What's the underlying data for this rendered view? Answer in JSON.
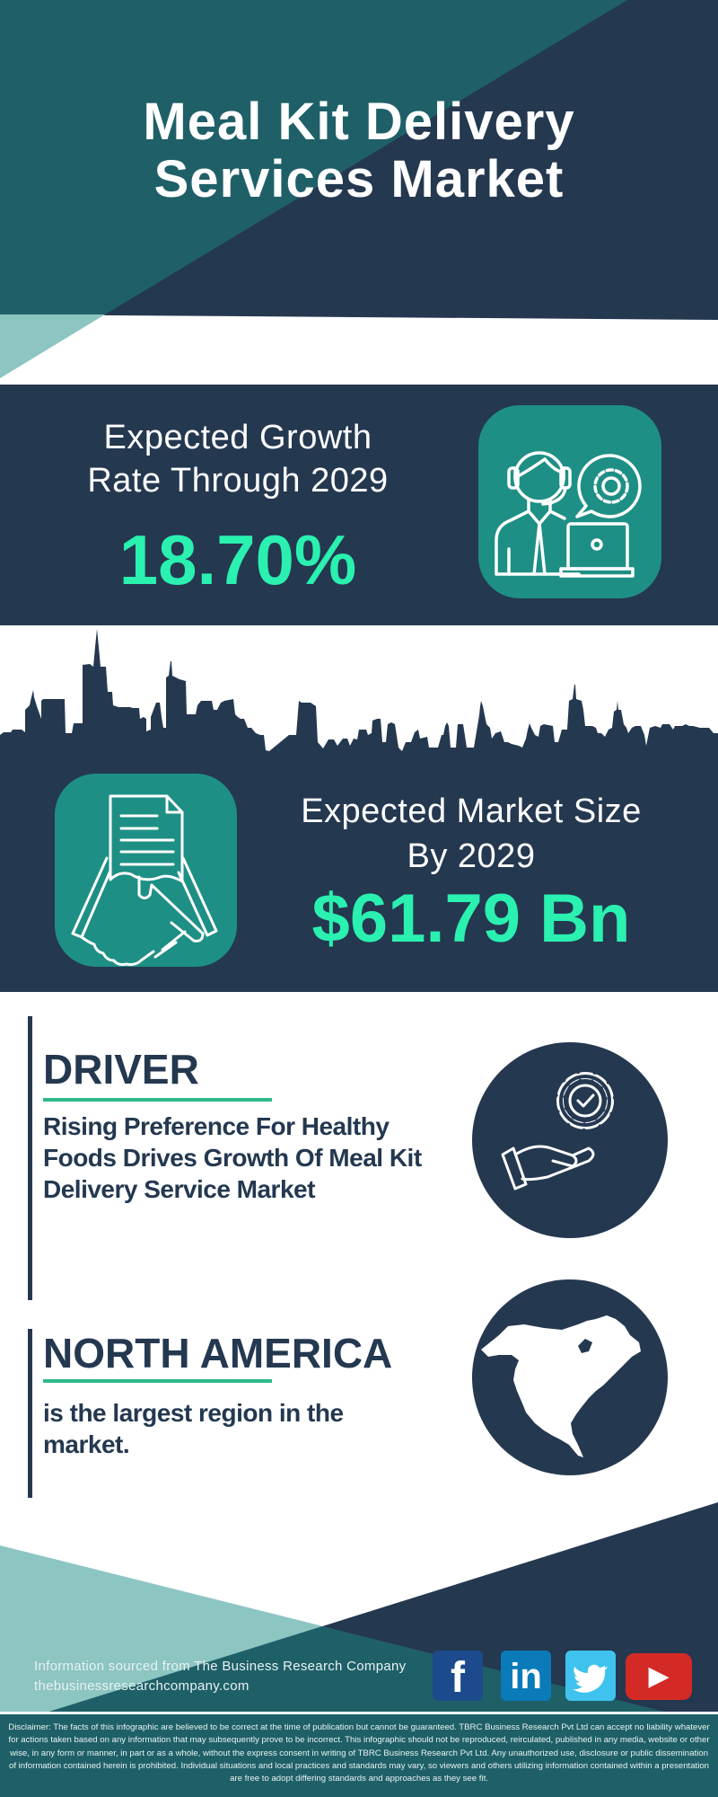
{
  "header": {
    "title_line1": "Meal Kit Delivery",
    "title_line2": "Services Market"
  },
  "growth": {
    "label_line1": "Expected Growth",
    "label_line2": "Rate Through 2029",
    "value": "18.70%",
    "icon": "customer-support-agent-icon"
  },
  "market_size": {
    "label_line1": "Expected Market Size",
    "label_line2": "By 2029",
    "value": "$61.79 Bn",
    "icon": "handshake-contract-icon"
  },
  "driver": {
    "title": "DRIVER",
    "text": "Rising Preference For Healthy Foods Drives Growth Of Meal Kit Delivery Service Market",
    "icon": "hand-gear-check-icon"
  },
  "region": {
    "title": "NORTH AMERICA",
    "text": "is the largest region in the market.",
    "icon": "north-america-map-icon"
  },
  "footer": {
    "source": "Information sourced from The Business Research Company",
    "url": "thebusinessresearchcompany.com",
    "social": [
      {
        "name": "facebook",
        "glyph": "f",
        "color": "#1d4a8c"
      },
      {
        "name": "linkedin",
        "glyph": "in",
        "color": "#0a7bb8"
      },
      {
        "name": "twitter",
        "glyph": "",
        "color": "#3fc3ee"
      },
      {
        "name": "youtube",
        "glyph": "▶",
        "color": "#d42a26"
      }
    ],
    "disclaimer": "Disclaimer: The facts of this infographic are believed to be correct at the time of publication but cannot be guaranteed. TBRC Business Research Pvt Ltd can accept no liability whatever for actions taken based on any information that may subsequently prove to be incorrect. This infographic should not be reproduced, reirculated, published in any media, website or otherwise, in any form or manner, in part or as a whole, without the express consent in writing of TBRC Business Research Pvt Ltd. Any unauthorized use, disclosure or public dissemination of information contained herein is prohibited. Individual situations and local practices and standards may vary, so viewers and others utilizing information contained within a presentation are free to adopt differing standards and approaches as they see fit."
  },
  "colors": {
    "navy": "#243850",
    "teal": "#1f6068",
    "light_teal": "#8cc5c2",
    "icon_bg": "#1e8f85",
    "accent_green": "#2af0b0",
    "underline_green": "#2fb98a"
  }
}
